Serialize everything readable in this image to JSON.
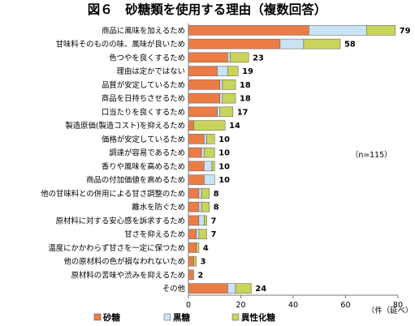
{
  "chart_data": {
    "type": "bar",
    "orientation": "horizontal",
    "stacked": true,
    "title": "図６　砂糖類を使用する理由（複数回答）",
    "categories": [
      "商品に風味を加えるため",
      "甘味料そのものの味、風味が良いため",
      "色つやを良くするため",
      "理由は定かではない",
      "品質が安定しているため",
      "商品を日持ちさせるため",
      "口当たりを良くするため",
      "製造原価(製造コスト)を抑えるため",
      "価格が安定しているため",
      "調達が容易であるため",
      "香りや風味を高めるため",
      "商品の付加価値を高めるため",
      "他の甘味料との併用による甘さ調整のため",
      "離水を防ぐため",
      "原材料に対する安心感を訴求するため",
      "甘さを抑えるため",
      "温度にかかわらず甘さを一定に保つため",
      "他の原材料の色が損なわれないため",
      "原材料の苦味や渋みを抑えるため",
      "その他"
    ],
    "totals": [
      "79",
      "58",
      "23",
      "19",
      "18",
      "18",
      "17",
      "14",
      "10",
      "10",
      "10",
      "10",
      "8",
      "8",
      "7",
      "7",
      "4",
      "3",
      "2",
      "24"
    ],
    "series": [
      {
        "name": "砂糖",
        "color": "#ec7c46",
        "values": [
          46,
          35,
          15,
          11,
          12,
          12,
          11,
          2,
          6,
          5,
          6,
          6,
          4,
          4,
          4,
          3,
          3,
          2,
          2,
          15
        ]
      },
      {
        "name": "黒糖",
        "color": "#c8e4f5",
        "values": [
          22,
          9,
          1,
          4,
          1,
          1,
          1,
          0,
          1,
          1,
          3,
          4,
          1,
          1,
          2,
          1,
          0,
          0,
          0,
          3
        ]
      },
      {
        "name": "異性化糖",
        "color": "#c9d45b",
        "values": [
          11,
          14,
          7,
          4,
          5,
          5,
          5,
          12,
          3,
          4,
          1,
          0,
          3,
          3,
          1,
          3,
          1,
          1,
          0,
          6
        ]
      }
    ],
    "xlim": [
      0,
      80
    ],
    "xticks": [
      "0",
      "20",
      "40",
      "60",
      "80"
    ],
    "xlabel": "（件（延べ）",
    "annotation": "（n=115）",
    "grid": false,
    "legend_position": "bottom"
  }
}
